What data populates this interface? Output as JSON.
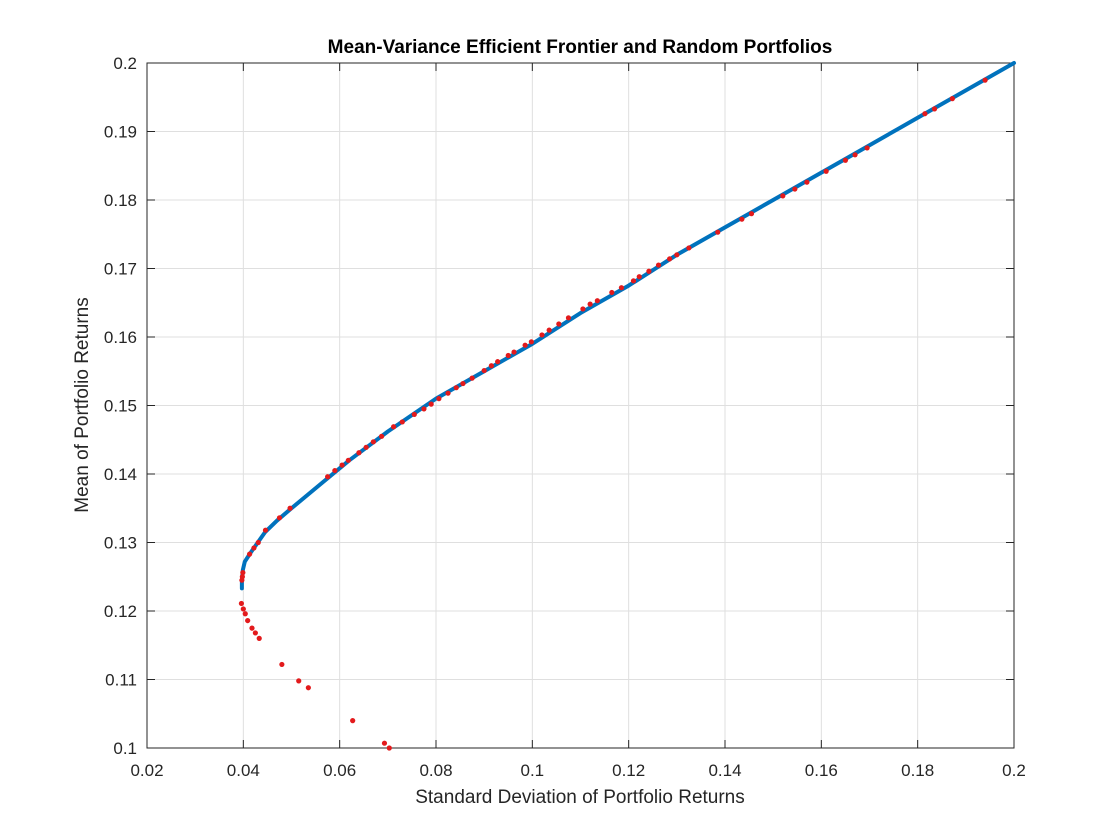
{
  "chart_data": {
    "type": "line",
    "title": "Mean-Variance Efficient Frontier and Random Portfolios",
    "xlabel": "Standard Deviation of Portfolio Returns",
    "ylabel": "Mean of Portfolio Returns",
    "xlim": [
      0.02,
      0.2
    ],
    "ylim": [
      0.1,
      0.2
    ],
    "grid": true,
    "x_ticks": [
      "0.02",
      "0.04",
      "0.06",
      "0.08",
      "0.1",
      "0.12",
      "0.14",
      "0.16",
      "0.18",
      "0.2"
    ],
    "y_ticks": [
      "0.1",
      "0.11",
      "0.12",
      "0.13",
      "0.14",
      "0.15",
      "0.16",
      "0.17",
      "0.18",
      "0.19",
      "0.2"
    ],
    "colors": {
      "frontier": "#0072bd",
      "points": "#e31a1c"
    },
    "series": [
      {
        "kind": "line",
        "x": [
          0.0397,
          0.0397,
          0.0399,
          0.0403,
          0.0415,
          0.043,
          0.0445,
          0.047,
          0.05,
          0.056,
          0.062,
          0.07,
          0.08,
          0.09,
          0.1,
          0.11,
          0.12,
          0.13,
          0.14,
          0.15,
          0.16,
          0.17,
          0.18,
          0.19,
          0.2
        ],
        "y": [
          0.1233,
          0.1245,
          0.126,
          0.1272,
          0.1285,
          0.13,
          0.1315,
          0.1332,
          0.135,
          0.1385,
          0.142,
          0.1462,
          0.151,
          0.155,
          0.159,
          0.1635,
          0.1675,
          0.172,
          0.176,
          0.18,
          0.184,
          0.188,
          0.192,
          0.196,
          0.2
        ]
      },
      {
        "kind": "scatter",
        "points": [
          [
            0.0397,
            0.1245
          ],
          [
            0.0398,
            0.125
          ],
          [
            0.0399,
            0.1256
          ],
          [
            0.0413,
            0.1283
          ],
          [
            0.0422,
            0.1292
          ],
          [
            0.0431,
            0.13
          ],
          [
            0.0446,
            0.1318
          ],
          [
            0.0475,
            0.1336
          ],
          [
            0.0497,
            0.135
          ],
          [
            0.0575,
            0.1396
          ],
          [
            0.059,
            0.1405
          ],
          [
            0.0605,
            0.1413
          ],
          [
            0.0618,
            0.142
          ],
          [
            0.064,
            0.1431
          ],
          [
            0.0655,
            0.1439
          ],
          [
            0.067,
            0.1447
          ],
          [
            0.0687,
            0.1455
          ],
          [
            0.0712,
            0.1469
          ],
          [
            0.073,
            0.1476
          ],
          [
            0.0755,
            0.1487
          ],
          [
            0.0775,
            0.1495
          ],
          [
            0.079,
            0.1502
          ],
          [
            0.0806,
            0.151
          ],
          [
            0.0825,
            0.1518
          ],
          [
            0.0842,
            0.1526
          ],
          [
            0.0856,
            0.1532
          ],
          [
            0.0875,
            0.154
          ],
          [
            0.09,
            0.1551
          ],
          [
            0.0915,
            0.1558
          ],
          [
            0.0928,
            0.1564
          ],
          [
            0.095,
            0.1573
          ],
          [
            0.0962,
            0.1578
          ],
          [
            0.0985,
            0.1588
          ],
          [
            0.0998,
            0.1593
          ],
          [
            0.102,
            0.1603
          ],
          [
            0.1035,
            0.161
          ],
          [
            0.1055,
            0.1619
          ],
          [
            0.1075,
            0.1628
          ],
          [
            0.1105,
            0.1641
          ],
          [
            0.112,
            0.1648
          ],
          [
            0.1135,
            0.1653
          ],
          [
            0.1165,
            0.1665
          ],
          [
            0.1185,
            0.1672
          ],
          [
            0.121,
            0.1682
          ],
          [
            0.1222,
            0.1688
          ],
          [
            0.1242,
            0.1696
          ],
          [
            0.1262,
            0.1705
          ],
          [
            0.1285,
            0.1714
          ],
          [
            0.13,
            0.172
          ],
          [
            0.1325,
            0.173
          ],
          [
            0.1385,
            0.1753
          ],
          [
            0.1435,
            0.1772
          ],
          [
            0.1455,
            0.178
          ],
          [
            0.152,
            0.1806
          ],
          [
            0.1545,
            0.1816
          ],
          [
            0.157,
            0.1826
          ],
          [
            0.161,
            0.1842
          ],
          [
            0.165,
            0.1858
          ],
          [
            0.167,
            0.1866
          ],
          [
            0.1695,
            0.1876
          ],
          [
            0.1815,
            0.1926
          ],
          [
            0.1835,
            0.1933
          ],
          [
            0.1872,
            0.1948
          ],
          [
            0.194,
            0.1975
          ],
          [
            0.0396,
            0.1211
          ],
          [
            0.04,
            0.1203
          ],
          [
            0.0404,
            0.1196
          ],
          [
            0.0409,
            0.1186
          ],
          [
            0.0418,
            0.1175
          ],
          [
            0.0425,
            0.1168
          ],
          [
            0.0433,
            0.116
          ],
          [
            0.048,
            0.1122
          ],
          [
            0.0515,
            0.1098
          ],
          [
            0.0535,
            0.1088
          ],
          [
            0.0627,
            0.104
          ],
          [
            0.0693,
            0.1007
          ],
          [
            0.0703,
            0.1
          ]
        ]
      }
    ]
  }
}
